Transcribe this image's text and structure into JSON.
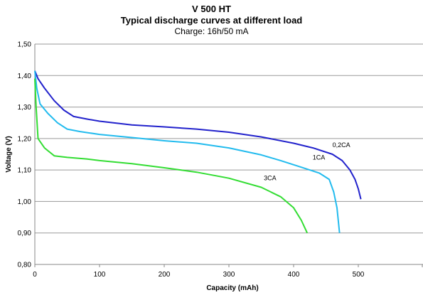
{
  "chart_data": {
    "type": "line",
    "title": "V 500 HT",
    "subtitle": "Typical discharge curves at different load",
    "subtitle2": "Charge: 16h/50 mA",
    "xlabel": "Capacity (mAh)",
    "ylabel": "Voltage (V)",
    "xlim": [
      0,
      600
    ],
    "ylim": [
      0.8,
      1.5
    ],
    "xticks": [
      "0",
      "100",
      "200",
      "300",
      "400",
      "500"
    ],
    "yticks": [
      "0,80",
      "0,90",
      "1,00",
      "1,10",
      "1,20",
      "1,30",
      "1,40",
      "1,50"
    ],
    "grid": "horizontal",
    "legend": "none",
    "series": [
      {
        "name": "0,2CA",
        "color": "#2222cc",
        "points": [
          [
            0,
            1.415
          ],
          [
            5,
            1.39
          ],
          [
            15,
            1.36
          ],
          [
            30,
            1.32
          ],
          [
            45,
            1.29
          ],
          [
            60,
            1.27
          ],
          [
            80,
            1.262
          ],
          [
            100,
            1.255
          ],
          [
            150,
            1.243
          ],
          [
            200,
            1.237
          ],
          [
            250,
            1.23
          ],
          [
            300,
            1.22
          ],
          [
            350,
            1.205
          ],
          [
            400,
            1.185
          ],
          [
            430,
            1.17
          ],
          [
            460,
            1.15
          ],
          [
            475,
            1.13
          ],
          [
            487,
            1.1
          ],
          [
            495,
            1.07
          ],
          [
            500,
            1.04
          ],
          [
            504,
            1.007
          ]
        ]
      },
      {
        "name": "1CA",
        "color": "#22bbee",
        "points": [
          [
            0,
            1.415
          ],
          [
            3,
            1.36
          ],
          [
            8,
            1.31
          ],
          [
            20,
            1.28
          ],
          [
            35,
            1.25
          ],
          [
            50,
            1.23
          ],
          [
            70,
            1.222
          ],
          [
            100,
            1.213
          ],
          [
            150,
            1.203
          ],
          [
            200,
            1.193
          ],
          [
            250,
            1.185
          ],
          [
            300,
            1.17
          ],
          [
            350,
            1.148
          ],
          [
            380,
            1.13
          ],
          [
            410,
            1.11
          ],
          [
            440,
            1.09
          ],
          [
            455,
            1.07
          ],
          [
            462,
            1.03
          ],
          [
            467,
            0.98
          ],
          [
            471,
            0.9
          ]
        ]
      },
      {
        "name": "3CA",
        "color": "#33dd33",
        "points": [
          [
            0,
            1.39
          ],
          [
            2,
            1.3
          ],
          [
            5,
            1.2
          ],
          [
            15,
            1.17
          ],
          [
            30,
            1.145
          ],
          [
            50,
            1.14
          ],
          [
            80,
            1.135
          ],
          [
            100,
            1.13
          ],
          [
            150,
            1.12
          ],
          [
            200,
            1.107
          ],
          [
            250,
            1.093
          ],
          [
            300,
            1.074
          ],
          [
            350,
            1.045
          ],
          [
            380,
            1.015
          ],
          [
            400,
            0.98
          ],
          [
            412,
            0.94
          ],
          [
            421,
            0.9
          ]
        ]
      }
    ]
  }
}
